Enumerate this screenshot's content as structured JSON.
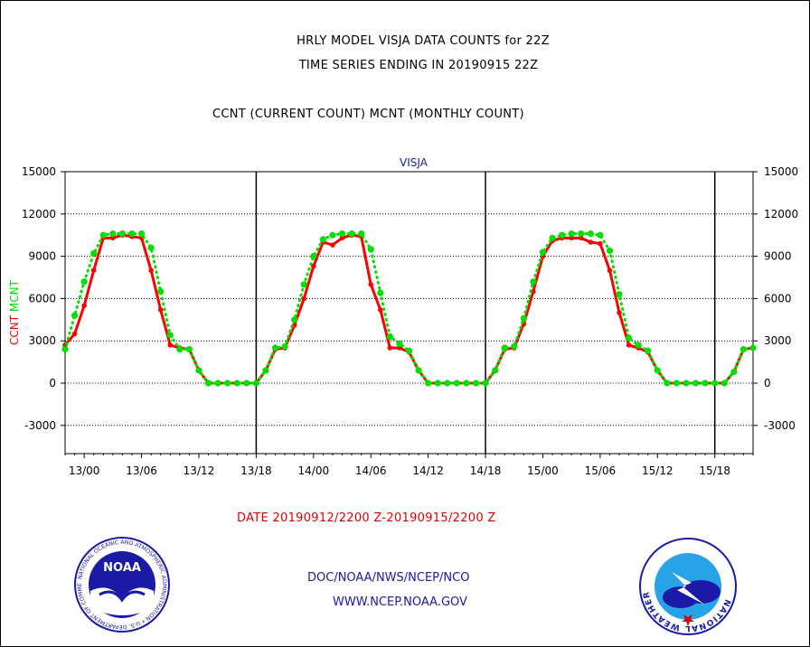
{
  "header": {
    "line1": "HRLY MODEL VISJA DATA COUNTS for 22Z",
    "line2": "TIME SERIES ENDING IN 20190915 22Z",
    "line3": "CCNT (CURRENT COUNT) MCNT (MONTHLY COUNT)"
  },
  "footer": {
    "date_range": "DATE 20190912/2200 Z-20190915/2200 Z",
    "credit_line1": "DOC/NOAA/NWS/NCEP/NCO",
    "credit_line2": "WWW.NCEP.NOAA.GOV"
  },
  "logos": {
    "left": "noaa-logo",
    "left_text": "NOAA",
    "left_ring_text": "NATIONAL OCEANIC AND ATMOSPHERIC ADMINISTRATION • U.S. DEPARTMENT OF COMMERCE",
    "right": "nws-logo",
    "right_ring_text": "NATIONAL WEATHER SERVICE"
  },
  "colors": {
    "ccnt": "#ff0000",
    "mcnt": "#00e000",
    "text_blue": "#1a1aa6",
    "date_red": "#e00000"
  },
  "chart_data": {
    "type": "line",
    "title": "VISJA",
    "ylabel_left_parts": [
      "CCNT",
      "MCNT"
    ],
    "ylim": [
      -5000,
      15000
    ],
    "yticks": [
      -3000,
      0,
      3000,
      6000,
      9000,
      12000,
      15000
    ],
    "ytick_labels": [
      "-3000",
      "0",
      "3000",
      "6000",
      "9000",
      "12000",
      "15000"
    ],
    "x_tick_labels": [
      "13/00",
      "13/06",
      "13/12",
      "13/18",
      "14/00",
      "14/06",
      "14/12",
      "14/18",
      "15/00",
      "15/06",
      "15/12",
      "15/18"
    ],
    "x_tick_hours": [
      2,
      8,
      14,
      20,
      26,
      32,
      38,
      44,
      50,
      56,
      62,
      68
    ],
    "x_range_hours": [
      0,
      72
    ],
    "day_boundaries_hours": [
      20,
      44,
      68
    ],
    "x_start": "20190912/2200",
    "grid": "horizontal dotted",
    "series": [
      {
        "name": "CCNT",
        "color": "#ff0000",
        "values": [
          2700,
          3500,
          5500,
          8000,
          10300,
          10300,
          10500,
          10400,
          10300,
          8000,
          5200,
          2700,
          2500,
          2400,
          900,
          0,
          0,
          0,
          0,
          0,
          0,
          900,
          2400,
          2500,
          4100,
          6000,
          8300,
          10000,
          9800,
          10300,
          10500,
          10400,
          7000,
          5200,
          2500,
          2500,
          2200,
          900,
          0,
          0,
          0,
          0,
          0,
          0,
          0,
          900,
          2400,
          2500,
          4200,
          6500,
          9000,
          10100,
          10300,
          10300,
          10300,
          10000,
          9900,
          8000,
          5000,
          2700,
          2500,
          2200,
          900,
          0,
          0,
          0,
          0,
          0,
          0,
          0,
          800,
          2400,
          2500
        ]
      },
      {
        "name": "MCNT",
        "color": "#00e000",
        "values": [
          2400,
          4800,
          7200,
          9200,
          10500,
          10600,
          10600,
          10600,
          10600,
          9600,
          6500,
          3400,
          2400,
          2400,
          900,
          0,
          0,
          0,
          0,
          0,
          0,
          900,
          2500,
          2600,
          4500,
          7000,
          9000,
          10200,
          10500,
          10600,
          10600,
          10600,
          9500,
          6400,
          3300,
          2800,
          2300,
          900,
          0,
          0,
          0,
          0,
          0,
          0,
          0,
          900,
          2500,
          2600,
          4600,
          7200,
          9300,
          10300,
          10500,
          10600,
          10600,
          10600,
          10500,
          9400,
          6300,
          3200,
          2700,
          2300,
          900,
          0,
          0,
          0,
          0,
          0,
          0,
          0,
          800,
          2400,
          2500
        ]
      }
    ]
  }
}
